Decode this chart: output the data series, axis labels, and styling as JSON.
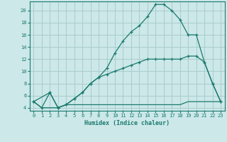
{
  "title": "",
  "xlabel": "Humidex (Indice chaleur)",
  "ylabel": "",
  "background_color": "#cce8e8",
  "grid_color": "#aacccc",
  "line_color": "#1a7a6e",
  "xlim": [
    -0.5,
    23.5
  ],
  "ylim": [
    3.5,
    21.5
  ],
  "xticks": [
    0,
    1,
    2,
    3,
    4,
    5,
    6,
    7,
    8,
    9,
    10,
    11,
    12,
    13,
    14,
    15,
    16,
    17,
    18,
    19,
    20,
    21,
    22,
    23
  ],
  "yticks": [
    4,
    6,
    8,
    10,
    12,
    14,
    16,
    18,
    20
  ],
  "curve1_x": [
    0,
    1,
    2,
    3,
    4,
    5,
    6,
    7,
    8,
    9,
    10,
    11,
    12,
    13,
    14,
    15,
    16,
    17,
    18,
    19,
    20,
    21,
    22,
    23
  ],
  "curve1_y": [
    5,
    4,
    6.5,
    4,
    4.5,
    5.5,
    6.5,
    8,
    9,
    10.5,
    13,
    15,
    16.5,
    17.5,
    19,
    21,
    21,
    20,
    18.5,
    16,
    16,
    11.5,
    8,
    5
  ],
  "curve2_x": [
    0,
    2,
    3,
    4,
    5,
    6,
    7,
    8,
    9,
    10,
    11,
    12,
    13,
    14,
    15,
    16,
    17,
    18,
    19,
    20,
    21,
    22,
    23
  ],
  "curve2_y": [
    5,
    6.5,
    4,
    4.5,
    5.5,
    6.5,
    8,
    9,
    9.5,
    10,
    10.5,
    11,
    11.5,
    12,
    12,
    12,
    12,
    12,
    12.5,
    12.5,
    11.5,
    8,
    5
  ],
  "curve3_x": [
    0,
    1,
    2,
    3,
    4,
    5,
    6,
    7,
    8,
    9,
    10,
    11,
    12,
    13,
    14,
    15,
    16,
    17,
    18,
    19,
    20,
    21,
    22,
    23
  ],
  "curve3_y": [
    5,
    4,
    4,
    4,
    4.5,
    4.5,
    4.5,
    4.5,
    4.5,
    4.5,
    4.5,
    4.5,
    4.5,
    4.5,
    4.5,
    4.5,
    4.5,
    4.5,
    4.5,
    5,
    5,
    5,
    5,
    5
  ]
}
